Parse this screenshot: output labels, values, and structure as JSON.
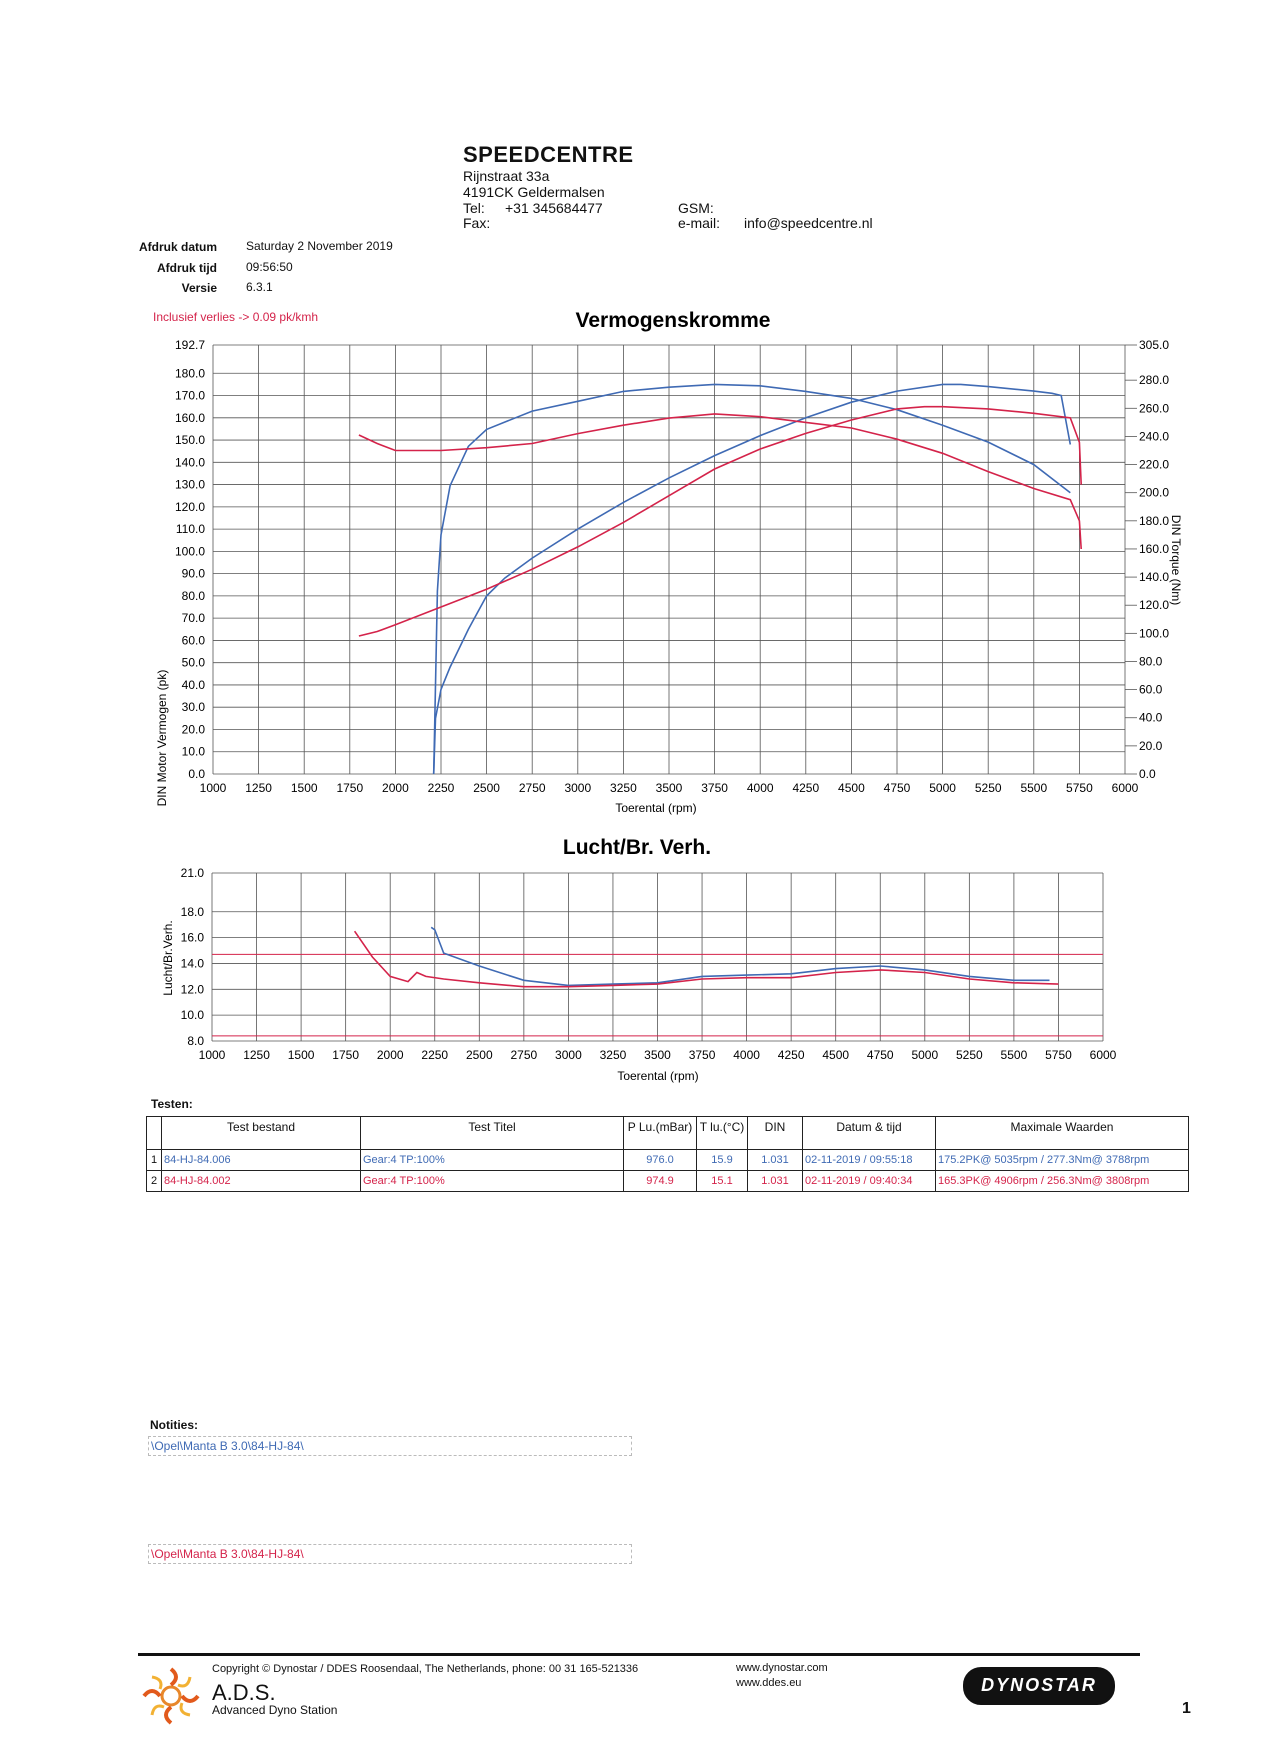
{
  "header": {
    "company": "SPEEDCENTRE",
    "street": "Rijnstraat 33a",
    "city": "4191CK Geldermalsen",
    "tel_label": "Tel:",
    "tel_value": "+31 345684477",
    "fax_label": "Fax:",
    "gsm_label": "GSM:",
    "email_label": "e-mail:",
    "email_value": "info@speedcentre.nl"
  },
  "meta": {
    "date_label": "Afdruk datum",
    "date_value": "Saturday 2 November 2019",
    "time_label": "Afdruk tijd",
    "time_value": "09:56:50",
    "version_label": "Versie",
    "version_value": "6.3.1",
    "loss_note": "Inclusief verlies -> 0.09 pk/kmh"
  },
  "colors": {
    "run1": "#3f6ab4",
    "run2": "#d4234a",
    "grid": "#555555"
  },
  "chart_data": [
    {
      "type": "line",
      "title": "Vermogenskromme",
      "xlabel": "Toerental (rpm)",
      "ylabel": "DIN Motor Vermogen (pk)",
      "y2label": "DIN Torque (Nm)",
      "xlim": [
        1000,
        6000
      ],
      "ylim": [
        0,
        192.7
      ],
      "y2lim": [
        0,
        305.0
      ],
      "x_ticks": [
        "1000",
        "1250",
        "1500",
        "1750",
        "2000",
        "2250",
        "2500",
        "2750",
        "3000",
        "3250",
        "3500",
        "3750",
        "4000",
        "4250",
        "4500",
        "4750",
        "5000",
        "5250",
        "5500",
        "5750",
        "6000"
      ],
      "y_ticks": [
        "0.0",
        "10.0",
        "20.0",
        "30.0",
        "40.0",
        "50.0",
        "60.0",
        "70.0",
        "80.0",
        "90.0",
        "100.0",
        "110.0",
        "120.0",
        "130.0",
        "140.0",
        "150.0",
        "160.0",
        "170.0",
        "180.0",
        "192.7"
      ],
      "y2_ticks": [
        "0.0",
        "20.0",
        "40.0",
        "60.0",
        "80.0",
        "100.0",
        "120.0",
        "140.0",
        "160.0",
        "180.0",
        "200.0",
        "220.0",
        "240.0",
        "260.0",
        "280.0",
        "305.0"
      ],
      "series": [
        {
          "name": "1",
          "kind": "power",
          "axis": "left",
          "color": "#3f6ab4",
          "x": [
            2210,
            2220,
            2250,
            2300,
            2400,
            2500,
            2600,
            2750,
            3000,
            3250,
            3500,
            3750,
            4000,
            4250,
            4500,
            4750,
            5000,
            5100,
            5250,
            5500,
            5600,
            5650,
            5700
          ],
          "y": [
            0,
            25,
            38,
            48,
            65,
            80,
            88,
            97,
            110,
            122,
            133,
            143,
            152,
            160,
            167,
            172,
            175,
            175,
            174,
            172,
            171,
            170,
            148
          ]
        },
        {
          "name": "1",
          "kind": "torque",
          "axis": "right",
          "color": "#3f6ab4",
          "x": [
            2210,
            2230,
            2250,
            2300,
            2400,
            2500,
            2750,
            3000,
            3250,
            3500,
            3750,
            4000,
            4250,
            4500,
            4750,
            5000,
            5250,
            5500,
            5700
          ],
          "y": [
            0,
            130,
            170,
            205,
            233,
            245,
            258,
            265,
            272,
            275,
            277,
            276,
            272,
            267,
            259,
            248,
            236,
            220,
            200
          ]
        },
        {
          "name": "2",
          "kind": "power",
          "axis": "left",
          "color": "#d4234a",
          "x": [
            1800,
            1900,
            2000,
            2250,
            2500,
            2750,
            3000,
            3250,
            3500,
            3750,
            4000,
            4250,
            4500,
            4750,
            4900,
            5000,
            5250,
            5500,
            5700,
            5750,
            5760
          ],
          "y": [
            62,
            64,
            67,
            75,
            83,
            92,
            102,
            113,
            125,
            137,
            146,
            153,
            159,
            164,
            165,
            165,
            164,
            162,
            160,
            149,
            130
          ]
        },
        {
          "name": "2",
          "kind": "torque",
          "axis": "right",
          "color": "#d4234a",
          "x": [
            1800,
            1900,
            2000,
            2250,
            2500,
            2750,
            3000,
            3250,
            3500,
            3750,
            4000,
            4250,
            4500,
            4750,
            5000,
            5250,
            5500,
            5700,
            5750,
            5760
          ],
          "y": [
            241,
            235,
            230,
            230,
            232,
            235,
            242,
            248,
            253,
            256,
            254,
            250,
            246,
            238,
            228,
            215,
            203,
            195,
            180,
            160
          ]
        }
      ]
    },
    {
      "type": "line",
      "title": "Lucht/Br. Verh.",
      "xlabel": "Toerental (rpm)",
      "ylabel": "Lucht/Br.Verh.",
      "xlim": [
        1000,
        6000
      ],
      "ylim": [
        8.0,
        21.0
      ],
      "x_ticks": [
        "1000",
        "1250",
        "1500",
        "1750",
        "2000",
        "2250",
        "2500",
        "2750",
        "3000",
        "3250",
        "3500",
        "3750",
        "4000",
        "4250",
        "4500",
        "4750",
        "5000",
        "5250",
        "5500",
        "5750",
        "6000"
      ],
      "y_ticks": [
        "8.0",
        "10.0",
        "12.0",
        "14.0",
        "16.0",
        "18.0",
        "21.0"
      ],
      "reference_lines": [
        14.7,
        8.4
      ],
      "series": [
        {
          "name": "1",
          "color": "#3f6ab4",
          "x": [
            2230,
            2250,
            2300,
            2500,
            2750,
            3000,
            3250,
            3500,
            3750,
            4000,
            4250,
            4500,
            4750,
            5000,
            5250,
            5500,
            5700
          ],
          "y": [
            16.8,
            16.6,
            14.8,
            13.8,
            12.7,
            12.3,
            12.4,
            12.5,
            13.0,
            13.1,
            13.2,
            13.6,
            13.8,
            13.5,
            13.0,
            12.7,
            12.7
          ]
        },
        {
          "name": "2",
          "color": "#d4234a",
          "x": [
            1800,
            1900,
            2000,
            2100,
            2150,
            2200,
            2300,
            2500,
            2750,
            3000,
            3250,
            3500,
            3750,
            4000,
            4250,
            4500,
            4750,
            5000,
            5250,
            5500,
            5750
          ],
          "y": [
            16.5,
            14.5,
            13.0,
            12.6,
            13.3,
            13.0,
            12.8,
            12.5,
            12.2,
            12.2,
            12.3,
            12.4,
            12.8,
            12.9,
            12.9,
            13.3,
            13.5,
            13.3,
            12.8,
            12.5,
            12.4
          ]
        }
      ]
    }
  ],
  "tests": {
    "label": "Testen:",
    "headers": [
      "Test bestand",
      "Test Titel",
      "P Lu.(mBar)",
      "T lu.(°C)",
      "DIN",
      "Datum & tijd",
      "Maximale Waarden"
    ],
    "rows": [
      {
        "num": "1",
        "file": "84-HJ-84.006",
        "title": "Gear:4 TP:100%",
        "p": "976.0",
        "t": "15.9",
        "din": "1.031",
        "date": "02-11-2019 / 09:55:18",
        "max": "175.2PK@ 5035rpm / 277.3Nm@ 3788rpm"
      },
      {
        "num": "2",
        "file": "84-HJ-84.002",
        "title": "Gear:4 TP:100%",
        "p": "974.9",
        "t": "15.1",
        "din": "1.031",
        "date": "02-11-2019 / 09:40:34",
        "max": "165.3PK@ 4906rpm / 256.3Nm@ 3808rpm"
      }
    ]
  },
  "notes": {
    "label": "Notities:",
    "note1": "\\Opel\\Manta B 3.0\\84-HJ-84\\",
    "note2": "\\Opel\\Manta B 3.0\\84-HJ-84\\"
  },
  "footer": {
    "copyright": "Copyright ©  Dynostar / DDES  Roosendaal, The Netherlands, phone: 00 31 165-521336",
    "ads": "A.D.S.",
    "ads_sub": "Advanced Dyno Station",
    "web1": "www.dynostar.com",
    "web2": "www.ddes.eu",
    "brand": "DYNOSTAR",
    "page": "1"
  }
}
